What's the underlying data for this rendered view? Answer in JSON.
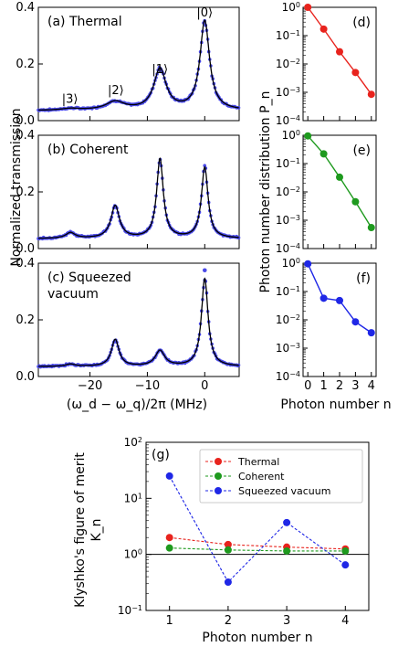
{
  "figure": {
    "shared_xlabel": "(ω_d − ω_q)/2π (MHz)",
    "left_ylabel": "Normalized transmission",
    "right_ylabel": "Photon number distribution  P_n",
    "right_xlabel": "Photon number  n",
    "bottom_xlabel": "Photon number  n",
    "bottom_ylabel_line1": "Klyshko's figure of merit",
    "bottom_ylabel_line2": "K_n"
  },
  "colors": {
    "data_points": "#4a4ae8",
    "fit_line": "#000000",
    "thermal": "#e8231d",
    "coherent": "#1e9a1e",
    "squeezed": "#1f27e6"
  },
  "chart_data": [
    {
      "id": "a",
      "type": "line",
      "panel_label": "(a)",
      "title": "Thermal",
      "xlim": [
        -29,
        6
      ],
      "ylim": [
        0,
        0.4
      ],
      "xticks": [
        "−20",
        "−10",
        "0"
      ],
      "yticks": [
        "0.0",
        "0.2",
        "0.4"
      ],
      "annotations": [
        {
          "text": "|3⟩",
          "x": -23.5,
          "y": 0.05
        },
        {
          "text": "|2⟩",
          "x": -15.5,
          "y": 0.08
        },
        {
          "text": "|1⟩",
          "x": -7.8,
          "y": 0.155
        },
        {
          "text": "|0⟩",
          "x": 0.0,
          "y": 0.355
        }
      ],
      "baseline": 0.035,
      "peaks": [
        {
          "x": 0.0,
          "h": 0.315,
          "w": 1.0
        },
        {
          "x": -7.8,
          "h": 0.145,
          "w": 1.3
        },
        {
          "x": -15.6,
          "h": 0.03,
          "w": 2.0
        },
        {
          "x": -23.4,
          "h": 0.006,
          "w": 2.0
        }
      ]
    },
    {
      "id": "b",
      "type": "line",
      "panel_label": "(b)",
      "title": "Coherent",
      "xlim": [
        -29,
        6
      ],
      "ylim": [
        0,
        0.4
      ],
      "xticks": [
        "−20",
        "−10",
        "0"
      ],
      "yticks": [
        "0.0",
        "0.2",
        "0.4"
      ],
      "baseline": 0.035,
      "peaks": [
        {
          "x": 0.0,
          "h": 0.25,
          "w": 0.7
        },
        {
          "x": -7.8,
          "h": 0.28,
          "w": 0.7
        },
        {
          "x": -15.6,
          "h": 0.115,
          "w": 0.9
        },
        {
          "x": -23.4,
          "h": 0.02,
          "w": 1.0
        }
      ]
    },
    {
      "id": "c",
      "type": "line",
      "panel_label": "(c)",
      "title": "Squeezed",
      "title_line2": "vacuum",
      "xlim": [
        -29,
        6
      ],
      "ylim": [
        0,
        0.4
      ],
      "xticks": [
        "−20",
        "−10",
        "0"
      ],
      "yticks": [
        "0.0",
        "0.2",
        "0.4"
      ],
      "baseline": 0.035,
      "peaks": [
        {
          "x": 0.0,
          "h": 0.31,
          "w": 0.7
        },
        {
          "x": -7.8,
          "h": 0.055,
          "w": 1.0
        },
        {
          "x": -15.6,
          "h": 0.095,
          "w": 0.8
        },
        {
          "x": -23.4,
          "h": 0.008,
          "w": 1.0
        }
      ],
      "outlier": {
        "x": 0.0,
        "y": 0.375
      }
    },
    {
      "id": "d",
      "type": "scatter",
      "panel_label": "(d)",
      "yscale": "log",
      "ylim_exp": [
        -4,
        0
      ],
      "xlim": [
        -0.3,
        4.3
      ],
      "x": [
        0,
        1,
        2,
        3,
        4
      ],
      "y": [
        1.0,
        0.17,
        0.027,
        0.005,
        0.00085
      ],
      "color": "thermal",
      "yticks": [
        "10^0",
        "10^-1",
        "10^-2",
        "10^-3",
        "10^-4"
      ]
    },
    {
      "id": "e",
      "type": "scatter",
      "panel_label": "(e)",
      "yscale": "log",
      "ylim_exp": [
        -4,
        0
      ],
      "xlim": [
        -0.3,
        4.3
      ],
      "x": [
        0,
        1,
        2,
        3,
        4
      ],
      "y": [
        0.95,
        0.22,
        0.033,
        0.0045,
        0.00055
      ],
      "color": "coherent",
      "yticks": [
        "10^0",
        "10^-1",
        "10^-2",
        "10^-3",
        "10^-4"
      ]
    },
    {
      "id": "f",
      "type": "scatter",
      "panel_label": "(f)",
      "yscale": "log",
      "ylim_exp": [
        -4,
        0
      ],
      "xlim": [
        -0.3,
        4.3
      ],
      "x": [
        0,
        1,
        2,
        3,
        4
      ],
      "y": [
        0.95,
        0.058,
        0.048,
        0.0085,
        0.0035
      ],
      "color": "squeezed",
      "yticks": [
        "10^0",
        "10^-1",
        "10^-2",
        "10^-3",
        "10^-4"
      ],
      "xticks": [
        "0",
        "1",
        "2",
        "3",
        "4"
      ]
    },
    {
      "id": "g",
      "type": "line",
      "panel_label": "(g)",
      "yscale": "log",
      "ylim_exp": [
        -1,
        2
      ],
      "xlim": [
        0.6,
        4.4
      ],
      "x": [
        1,
        2,
        3,
        4
      ],
      "xticks": [
        "1",
        "2",
        "3",
        "4"
      ],
      "yticks": [
        "10^2",
        "10^1",
        "10^0",
        "10^-1"
      ],
      "reference_line": 1.0,
      "legend_position": "top-right",
      "series": [
        {
          "name": "Thermal",
          "color": "thermal",
          "values": [
            2.0,
            1.5,
            1.35,
            1.25
          ]
        },
        {
          "name": "Coherent",
          "color": "coherent",
          "values": [
            1.3,
            1.2,
            1.15,
            1.15
          ]
        },
        {
          "name": "Squeezed vacuum",
          "color": "squeezed",
          "values": [
            25.0,
            0.32,
            3.7,
            0.65
          ]
        }
      ]
    }
  ]
}
